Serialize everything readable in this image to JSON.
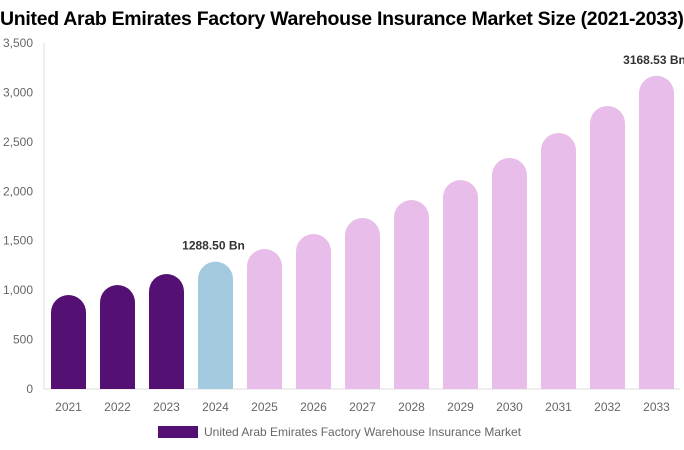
{
  "chart_data": {
    "type": "bar",
    "title": "United Arab Emirates Factory Warehouse Insurance Market Size (2021-2033)",
    "categories": [
      "2021",
      "2022",
      "2023",
      "2024",
      "2025",
      "2026",
      "2027",
      "2028",
      "2029",
      "2030",
      "2031",
      "2032",
      "2033"
    ],
    "series": [
      {
        "name": "United Arab Emirates Factory Warehouse Insurance Market",
        "values": [
          951,
          1052,
          1163,
          1288.5,
          1416,
          1568,
          1730,
          1912,
          2114,
          2337,
          2590,
          2863,
          3168.53
        ]
      }
    ],
    "data_labels": [
      {
        "category": "2024",
        "text": "1288.50 Bn"
      },
      {
        "category": "2033",
        "text": "3168.53 Bn"
      }
    ],
    "ylim": [
      0,
      3500
    ],
    "yticks": [
      "0",
      "500",
      "1,000",
      "1,500",
      "2,000",
      "2,500",
      "3,000",
      "3,500"
    ],
    "ytick_values": [
      0,
      500,
      1000,
      1500,
      2000,
      2500,
      3000,
      3500
    ],
    "xlabel": "",
    "ylabel": "",
    "grid": false,
    "legend_position": "bottom",
    "colors": {
      "historical": "#541173",
      "base_year": "#a3cadf",
      "forecast": "#e8bde9",
      "legend": "#541173"
    }
  }
}
